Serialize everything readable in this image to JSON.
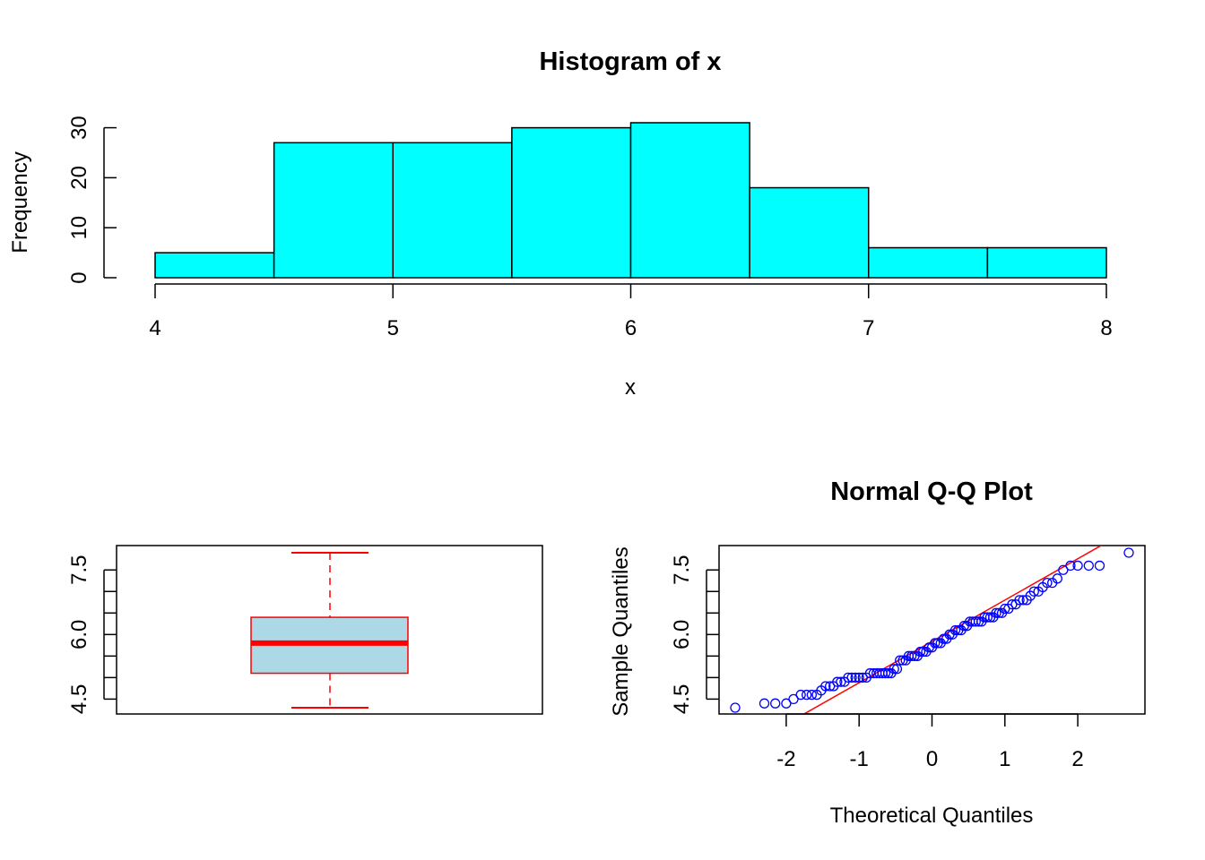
{
  "colors": {
    "hist_fill": "#00ffff",
    "box_fill": "#add8e6",
    "box_stroke": "#ff0000",
    "qq_points": "#0000ff",
    "qq_line": "#ff0000",
    "axis": "#000000"
  },
  "chart_data": [
    {
      "type": "bar",
      "title": "Histogram of x",
      "xlabel": "x",
      "ylabel": "Frequency",
      "bins": [
        {
          "from": 4.0,
          "to": 4.5,
          "count": 5
        },
        {
          "from": 4.5,
          "to": 5.0,
          "count": 27
        },
        {
          "from": 5.0,
          "to": 5.5,
          "count": 27
        },
        {
          "from": 5.5,
          "to": 6.0,
          "count": 30
        },
        {
          "from": 6.0,
          "to": 6.5,
          "count": 31
        },
        {
          "from": 6.5,
          "to": 7.0,
          "count": 18
        },
        {
          "from": 7.0,
          "to": 7.5,
          "count": 6
        },
        {
          "from": 7.5,
          "to": 8.0,
          "count": 6
        }
      ],
      "xticks": [
        "4",
        "5",
        "6",
        "7",
        "8"
      ],
      "yticks": [
        "0",
        "10",
        "20",
        "30"
      ],
      "xlim": [
        4,
        8
      ],
      "ylim": [
        0,
        31
      ]
    },
    {
      "type": "boxplot",
      "title": "",
      "whisker_low": 4.3,
      "q1": 5.1,
      "median": 5.8,
      "q3": 6.4,
      "whisker_high": 7.9,
      "yticks": [
        "4.5",
        "6.0",
        "7.5"
      ],
      "ylim": [
        4.3,
        7.9
      ]
    },
    {
      "type": "scatter",
      "title": "Normal Q-Q Plot",
      "xlabel": "Theoretical Quantiles",
      "ylabel": "Sample Quantiles",
      "xticks": [
        "-2",
        "-1",
        "0",
        "1",
        "2"
      ],
      "yticks": [
        "4.5",
        "6.0",
        "7.5"
      ],
      "xlim": [
        -2.7,
        2.7
      ],
      "ylim": [
        4.3,
        7.9
      ],
      "line": {
        "intercept": 5.84,
        "slope": 0.96
      },
      "points": [
        [
          -2.7,
          4.3
        ],
        [
          -2.3,
          4.4
        ],
        [
          -2.15,
          4.4
        ],
        [
          -2.0,
          4.4
        ],
        [
          -1.9,
          4.5
        ],
        [
          -1.8,
          4.6
        ],
        [
          -1.72,
          4.6
        ],
        [
          -1.65,
          4.6
        ],
        [
          -1.58,
          4.6
        ],
        [
          -1.52,
          4.7
        ],
        [
          -1.46,
          4.8
        ],
        [
          -1.4,
          4.8
        ],
        [
          -1.35,
          4.8
        ],
        [
          -1.3,
          4.9
        ],
        [
          -1.25,
          4.9
        ],
        [
          -1.2,
          4.9
        ],
        [
          -1.15,
          5.0
        ],
        [
          -1.1,
          5.0
        ],
        [
          -1.05,
          5.0
        ],
        [
          -1.0,
          5.0
        ],
        [
          -0.95,
          5.0
        ],
        [
          -0.9,
          5.0
        ],
        [
          -0.85,
          5.1
        ],
        [
          -0.8,
          5.1
        ],
        [
          -0.76,
          5.1
        ],
        [
          -0.72,
          5.1
        ],
        [
          -0.68,
          5.1
        ],
        [
          -0.64,
          5.1
        ],
        [
          -0.6,
          5.1
        ],
        [
          -0.56,
          5.1
        ],
        [
          -0.52,
          5.2
        ],
        [
          -0.48,
          5.2
        ],
        [
          -0.44,
          5.4
        ],
        [
          -0.4,
          5.4
        ],
        [
          -0.36,
          5.4
        ],
        [
          -0.32,
          5.5
        ],
        [
          -0.28,
          5.5
        ],
        [
          -0.24,
          5.5
        ],
        [
          -0.2,
          5.5
        ],
        [
          -0.16,
          5.6
        ],
        [
          -0.12,
          5.6
        ],
        [
          -0.08,
          5.6
        ],
        [
          -0.04,
          5.7
        ],
        [
          0.0,
          5.7
        ],
        [
          0.04,
          5.8
        ],
        [
          0.08,
          5.8
        ],
        [
          0.12,
          5.8
        ],
        [
          0.16,
          5.9
        ],
        [
          0.2,
          5.9
        ],
        [
          0.24,
          6.0
        ],
        [
          0.28,
          6.0
        ],
        [
          0.32,
          6.1
        ],
        [
          0.36,
          6.1
        ],
        [
          0.4,
          6.1
        ],
        [
          0.44,
          6.2
        ],
        [
          0.48,
          6.2
        ],
        [
          0.52,
          6.3
        ],
        [
          0.56,
          6.3
        ],
        [
          0.6,
          6.3
        ],
        [
          0.64,
          6.3
        ],
        [
          0.68,
          6.3
        ],
        [
          0.72,
          6.4
        ],
        [
          0.76,
          6.4
        ],
        [
          0.8,
          6.4
        ],
        [
          0.84,
          6.4
        ],
        [
          0.88,
          6.5
        ],
        [
          0.92,
          6.5
        ],
        [
          0.96,
          6.5
        ],
        [
          1.0,
          6.6
        ],
        [
          1.05,
          6.6
        ],
        [
          1.1,
          6.7
        ],
        [
          1.15,
          6.7
        ],
        [
          1.2,
          6.8
        ],
        [
          1.25,
          6.8
        ],
        [
          1.3,
          6.8
        ],
        [
          1.35,
          6.9
        ],
        [
          1.4,
          7.0
        ],
        [
          1.46,
          7.0
        ],
        [
          1.52,
          7.1
        ],
        [
          1.58,
          7.2
        ],
        [
          1.65,
          7.2
        ],
        [
          1.72,
          7.3
        ],
        [
          1.8,
          7.5
        ],
        [
          1.9,
          7.6
        ],
        [
          2.0,
          7.6
        ],
        [
          2.15,
          7.6
        ],
        [
          2.3,
          7.6
        ],
        [
          2.7,
          7.9
        ]
      ]
    }
  ]
}
